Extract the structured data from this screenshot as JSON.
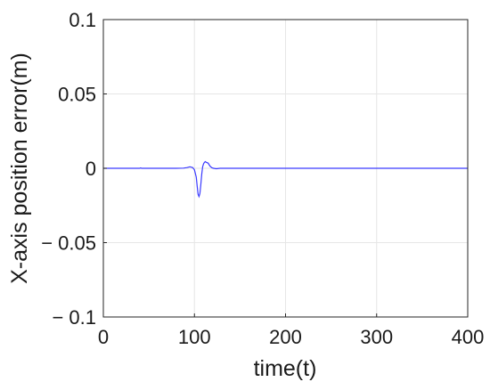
{
  "chart_data": {
    "type": "line",
    "title": "",
    "xlabel": "time(t)",
    "ylabel": "X-axis position error(m)",
    "xlim": [
      0,
      400
    ],
    "ylim": [
      -0.1,
      0.1
    ],
    "x_ticks": [
      0,
      100,
      200,
      300,
      400
    ],
    "x_tick_labels": [
      "0",
      "100",
      "200",
      "300",
      "400"
    ],
    "y_ticks": [
      0.1,
      0.05,
      0,
      -0.05,
      -0.1
    ],
    "y_tick_labels": [
      "0.1",
      "0.05",
      "0",
      "− 0.05",
      "− 0.1"
    ],
    "grid": true,
    "line_color": "#3a3aff",
    "series": [
      {
        "x": [
          0,
          40,
          41,
          42,
          80,
          88,
          92,
          95,
          98,
          100,
          102,
          103,
          104,
          105,
          106,
          107,
          108,
          109,
          110,
          111,
          112,
          113,
          115,
          117,
          119,
          121,
          124,
          128,
          135,
          150,
          400
        ],
        "y": [
          0,
          0,
          0.0003,
          0,
          0,
          0.0001,
          0.0005,
          0.001,
          0.0005,
          -0.001,
          -0.006,
          -0.012,
          -0.0175,
          -0.019,
          -0.017,
          -0.011,
          -0.004,
          0.001,
          0.003,
          0.004,
          0.0045,
          0.004,
          0.0035,
          0.0015,
          0.0004,
          0,
          -0.0003,
          0,
          0,
          0,
          0
        ]
      }
    ]
  }
}
